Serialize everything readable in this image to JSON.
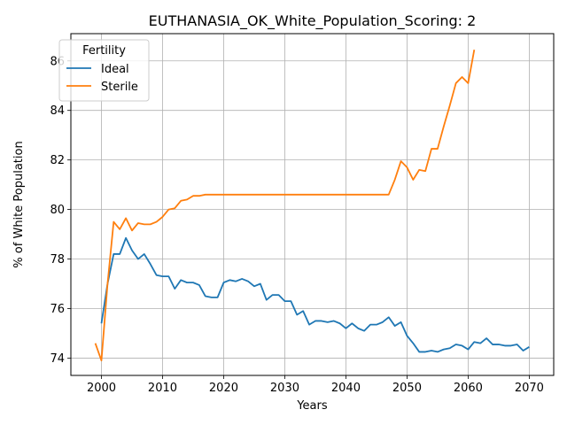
{
  "chart_data": {
    "type": "line",
    "title": "EUTHANASIA_OK_White_Population_Scoring: 2",
    "xlabel": "Years",
    "ylabel": "% of White Population",
    "xlim": [
      1995,
      2074
    ],
    "ylim": [
      73.3,
      87.1
    ],
    "x_ticks": [
      2000,
      2010,
      2020,
      2030,
      2040,
      2050,
      2060,
      2070
    ],
    "y_ticks": [
      74,
      76,
      78,
      80,
      82,
      84,
      86
    ],
    "grid": true,
    "legend": {
      "title": "Fertility",
      "position": "top-left"
    },
    "series": [
      {
        "name": "Ideal",
        "color": "#1f77b4",
        "x": [
          2000,
          2001,
          2002,
          2003,
          2004,
          2005,
          2006,
          2007,
          2008,
          2009,
          2010,
          2011,
          2012,
          2013,
          2014,
          2015,
          2016,
          2017,
          2018,
          2019,
          2020,
          2021,
          2022,
          2023,
          2024,
          2025,
          2026,
          2027,
          2028,
          2029,
          2030,
          2031,
          2032,
          2033,
          2034,
          2035,
          2036,
          2037,
          2038,
          2039,
          2040,
          2041,
          2042,
          2043,
          2044,
          2045,
          2046,
          2047,
          2048,
          2049,
          2050,
          2051,
          2052,
          2053,
          2054,
          2055,
          2056,
          2057,
          2058,
          2059,
          2060,
          2061,
          2062,
          2063,
          2064,
          2065,
          2066,
          2067,
          2068,
          2069,
          2070
        ],
        "y": [
          75.4,
          77.0,
          78.2,
          78.2,
          78.85,
          78.35,
          78.0,
          78.2,
          77.8,
          77.35,
          77.3,
          77.3,
          76.8,
          77.15,
          77.05,
          77.05,
          76.95,
          76.5,
          76.45,
          76.45,
          77.05,
          77.15,
          77.1,
          77.2,
          77.1,
          76.9,
          77.0,
          76.35,
          76.55,
          76.55,
          76.3,
          76.3,
          75.75,
          75.9,
          75.35,
          75.5,
          75.5,
          75.45,
          75.5,
          75.4,
          75.2,
          75.4,
          75.2,
          75.1,
          75.35,
          75.35,
          75.45,
          75.65,
          75.3,
          75.45,
          74.9,
          74.6,
          74.25,
          74.25,
          74.3,
          74.25,
          74.35,
          74.4,
          74.55,
          74.5,
          74.35,
          74.65,
          74.6,
          74.8,
          74.55,
          74.55,
          74.5,
          74.5,
          74.55,
          74.3,
          74.45
        ]
      },
      {
        "name": "Sterile",
        "color": "#ff7f0e",
        "x": [
          1999,
          2000,
          2001,
          2002,
          2003,
          2004,
          2005,
          2006,
          2007,
          2008,
          2009,
          2010,
          2011,
          2012,
          2013,
          2014,
          2015,
          2016,
          2017,
          2018,
          2019,
          2020,
          2021,
          2022,
          2023,
          2024,
          2025,
          2026,
          2027,
          2028,
          2029,
          2030,
          2031,
          2032,
          2033,
          2034,
          2035,
          2036,
          2037,
          2038,
          2039,
          2040,
          2041,
          2042,
          2043,
          2044,
          2045,
          2046,
          2047,
          2048,
          2049,
          2050,
          2051,
          2052,
          2053,
          2054,
          2055,
          2056,
          2057,
          2058,
          2059,
          2060,
          2061
        ],
        "y": [
          74.6,
          73.9,
          77.0,
          79.5,
          79.2,
          79.65,
          79.15,
          79.45,
          79.4,
          79.4,
          79.5,
          79.7,
          80.0,
          80.05,
          80.35,
          80.4,
          80.55,
          80.55,
          80.6,
          80.6,
          80.6,
          80.6,
          80.6,
          80.6,
          80.6,
          80.6,
          80.6,
          80.6,
          80.6,
          80.6,
          80.6,
          80.6,
          80.6,
          80.6,
          80.6,
          80.6,
          80.6,
          80.6,
          80.6,
          80.6,
          80.6,
          80.6,
          80.6,
          80.6,
          80.6,
          80.6,
          80.6,
          80.6,
          80.6,
          81.2,
          81.95,
          81.7,
          81.2,
          81.6,
          81.55,
          82.45,
          82.45,
          83.35,
          84.2,
          85.1,
          85.35,
          85.1,
          86.45
        ]
      }
    ]
  }
}
